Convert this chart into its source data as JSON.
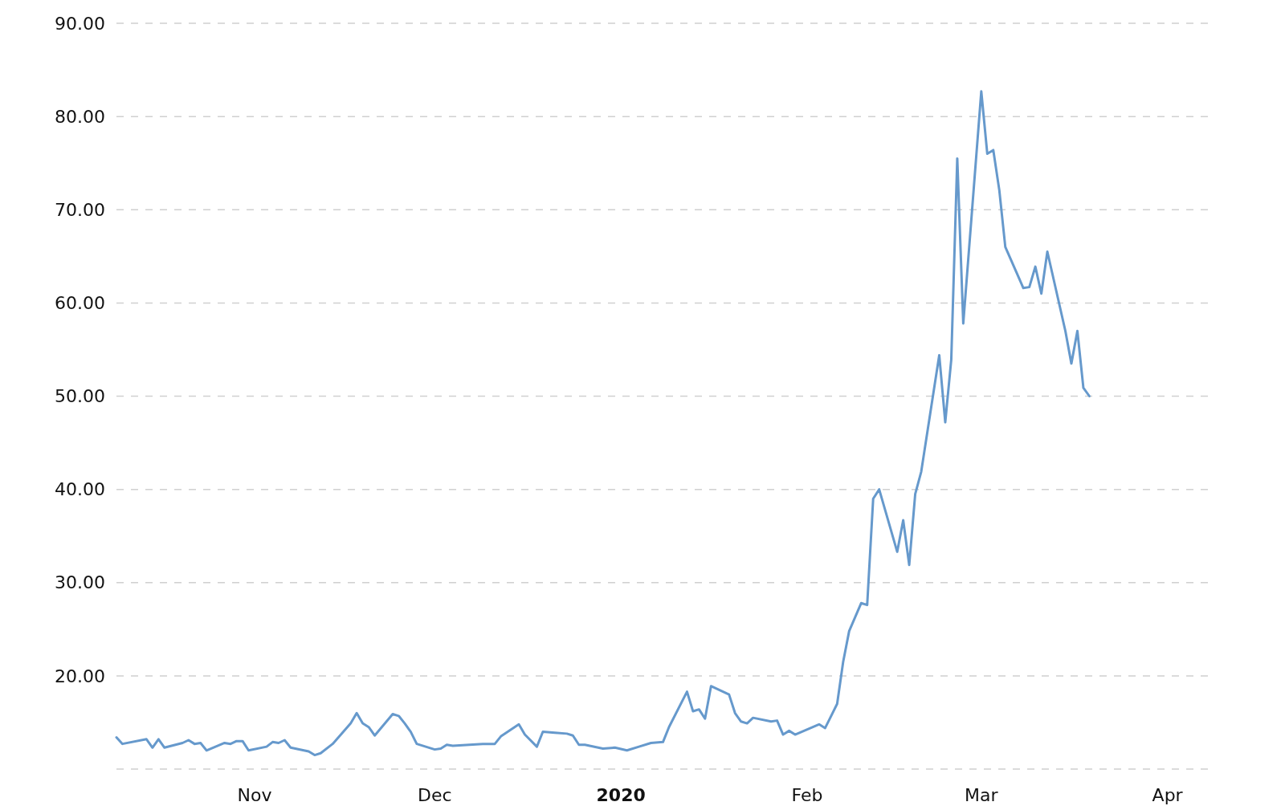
{
  "chart_data": {
    "type": "line",
    "grid": "y",
    "line_style": "solid",
    "marker": "none",
    "xlim": [
      "2019-10-09",
      "2020-04-08"
    ],
    "xticks": [
      {
        "value": "2019-11-01",
        "label": "Nov"
      },
      {
        "value": "2019-12-01",
        "label": "Dec"
      },
      {
        "value": "2020-01-01",
        "label": "2020"
      },
      {
        "value": "2020-02-01",
        "label": "Feb"
      },
      {
        "value": "2020-03-01",
        "label": "Mar"
      },
      {
        "value": "2020-04-01",
        "label": "Apr"
      }
    ],
    "ylim": [
      10,
      90
    ],
    "yticks": [
      {
        "value": 10,
        "label": null
      },
      {
        "value": 20,
        "label": "20.00"
      },
      {
        "value": 30,
        "label": "30.00"
      },
      {
        "value": 40,
        "label": "40.00"
      },
      {
        "value": 50,
        "label": "50.00"
      },
      {
        "value": 60,
        "label": "60.00"
      },
      {
        "value": 70,
        "label": "70.00"
      },
      {
        "value": 80,
        "label": "80.00"
      },
      {
        "value": 90,
        "label": "90.00"
      }
    ],
    "series": [
      {
        "color": "#6699cc",
        "x": [
          "2019-10-09",
          "2019-10-10",
          "2019-10-14",
          "2019-10-15",
          "2019-10-16",
          "2019-10-17",
          "2019-10-20",
          "2019-10-21",
          "2019-10-22",
          "2019-10-23",
          "2019-10-24",
          "2019-10-27",
          "2019-10-28",
          "2019-10-29",
          "2019-10-30",
          "2019-10-31",
          "2019-11-03",
          "2019-11-04",
          "2019-11-05",
          "2019-11-06",
          "2019-11-07",
          "2019-11-10",
          "2019-11-11",
          "2019-11-12",
          "2019-11-14",
          "2019-11-17",
          "2019-11-18",
          "2019-11-19",
          "2019-11-20",
          "2019-11-21",
          "2019-11-24",
          "2019-11-25",
          "2019-11-26",
          "2019-11-27",
          "2019-11-28",
          "2019-12-01",
          "2019-12-02",
          "2019-12-03",
          "2019-12-04",
          "2019-12-09",
          "2019-12-11",
          "2019-12-12",
          "2019-12-15",
          "2019-12-16",
          "2019-12-18",
          "2019-12-19",
          "2019-12-21",
          "2019-12-23",
          "2019-12-24",
          "2019-12-25",
          "2019-12-26",
          "2019-12-29",
          "2019-12-31",
          "2020-01-02",
          "2020-01-04",
          "2020-01-06",
          "2020-01-08",
          "2020-01-09",
          "2020-01-12",
          "2020-01-13",
          "2020-01-14",
          "2020-01-15",
          "2020-01-16",
          "2020-01-19",
          "2020-01-20",
          "2020-01-21",
          "2020-01-22",
          "2020-01-23",
          "2020-01-26",
          "2020-01-27",
          "2020-01-28",
          "2020-01-29",
          "2020-01-30",
          "2020-02-03",
          "2020-02-04",
          "2020-02-05",
          "2020-02-06",
          "2020-02-07",
          "2020-02-08",
          "2020-02-10",
          "2020-02-11",
          "2020-02-12",
          "2020-02-13",
          "2020-02-16",
          "2020-02-17",
          "2020-02-18",
          "2020-02-19",
          "2020-02-20",
          "2020-02-23",
          "2020-02-24",
          "2020-02-25",
          "2020-02-26",
          "2020-02-27",
          "2020-03-01",
          "2020-03-02",
          "2020-03-03",
          "2020-03-04",
          "2020-03-05",
          "2020-03-08",
          "2020-03-09",
          "2020-03-10",
          "2020-03-11",
          "2020-03-12",
          "2020-03-15",
          "2020-03-16",
          "2020-03-17",
          "2020-03-18",
          "2020-03-19"
        ],
        "values": [
          13.4,
          12.7,
          13.2,
          12.3,
          13.2,
          12.3,
          12.8,
          13.1,
          12.7,
          12.8,
          12.0,
          12.8,
          12.7,
          13.0,
          13.0,
          12.0,
          12.4,
          12.9,
          12.8,
          13.1,
          12.3,
          11.9,
          11.5,
          11.7,
          12.7,
          14.9,
          16.0,
          14.9,
          14.5,
          13.6,
          15.9,
          15.7,
          14.9,
          14.0,
          12.7,
          12.1,
          12.2,
          12.6,
          12.5,
          12.7,
          12.7,
          13.5,
          14.8,
          13.7,
          12.4,
          14.0,
          13.9,
          13.8,
          13.6,
          12.6,
          12.6,
          12.2,
          12.3,
          12.0,
          12.4,
          12.8,
          12.9,
          14.5,
          18.3,
          16.2,
          16.4,
          15.4,
          18.9,
          18.0,
          16.0,
          15.1,
          14.9,
          15.5,
          15.1,
          15.2,
          13.7,
          14.1,
          13.7,
          14.8,
          14.4,
          15.7,
          17.0,
          21.5,
          24.8,
          27.8,
          27.6,
          39.0,
          40.0,
          33.3,
          36.7,
          31.9,
          39.5,
          41.9,
          54.4,
          47.2,
          53.9,
          75.5,
          57.8,
          82.7,
          76.0,
          76.4,
          72.1,
          66.0,
          61.6,
          61.7,
          63.9,
          61.0,
          65.5,
          57.0,
          53.5,
          57.0,
          50.9,
          50.0
        ]
      }
    ]
  }
}
